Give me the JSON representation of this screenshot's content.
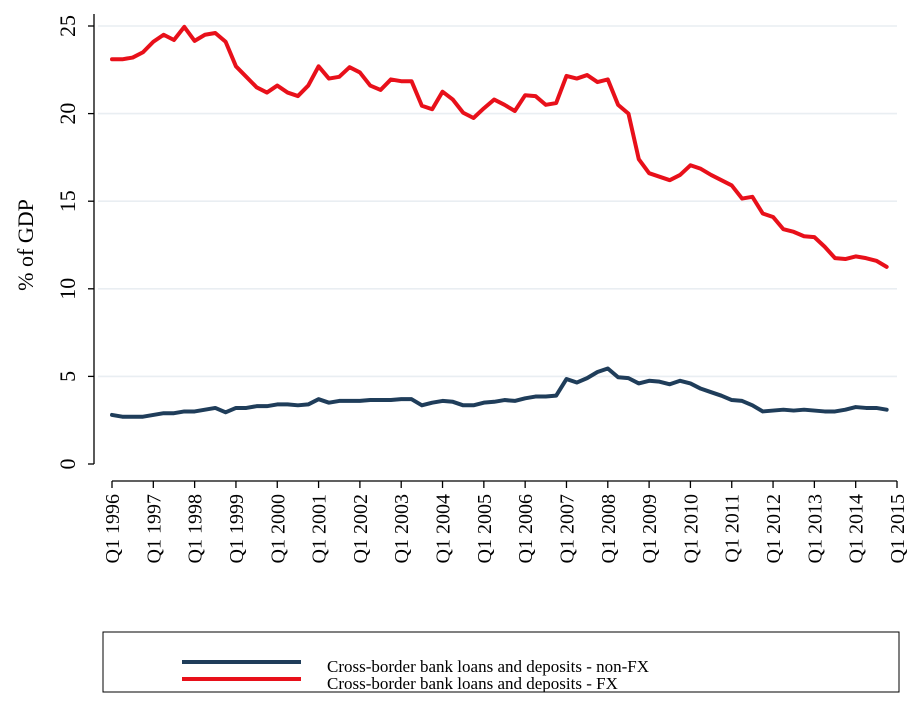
{
  "chart_data": {
    "type": "line",
    "title": "",
    "xlabel": "",
    "ylabel": "% of GDP",
    "ylim": [
      0,
      25
    ],
    "y_ticks": [
      0,
      5,
      10,
      15,
      20,
      25
    ],
    "grid": true,
    "legend_position": "bottom",
    "x_start": "1996-Q1",
    "x_end": "2014-Q4",
    "x_tick_labels": [
      "Q1 1996",
      "Q1 1997",
      "Q1 1998",
      "Q1 1999",
      "Q1 2000",
      "Q1 2001",
      "Q1 2002",
      "Q1 2003",
      "Q1 2004",
      "Q1 2005",
      "Q1 2006",
      "Q1 2007",
      "Q1 2008",
      "Q1 2009",
      "Q1 2010",
      "Q1 2011",
      "Q1 2012",
      "Q1 2013",
      "Q1 2014",
      "Q1 2015"
    ],
    "series": [
      {
        "name": "Cross-border bank loans and deposits - non-FX",
        "color": "#1f3d5a",
        "values": [
          2.8,
          2.7,
          2.7,
          2.7,
          2.8,
          2.9,
          2.9,
          3.0,
          3.0,
          3.1,
          3.2,
          2.95,
          3.2,
          3.2,
          3.3,
          3.3,
          3.4,
          3.4,
          3.35,
          3.4,
          3.7,
          3.5,
          3.6,
          3.6,
          3.6,
          3.65,
          3.65,
          3.65,
          3.7,
          3.7,
          3.35,
          3.5,
          3.6,
          3.55,
          3.35,
          3.35,
          3.5,
          3.55,
          3.65,
          3.6,
          3.75,
          3.85,
          3.85,
          3.9,
          4.85,
          4.65,
          4.9,
          5.25,
          5.45,
          4.95,
          4.9,
          4.6,
          4.75,
          4.7,
          4.55,
          4.75,
          4.6,
          4.3,
          4.1,
          3.9,
          3.65,
          3.6,
          3.35,
          3.0,
          3.05,
          3.1,
          3.05,
          3.1,
          3.05,
          3.0,
          3.0,
          3.1,
          3.25,
          3.2,
          3.2,
          3.1
        ]
      },
      {
        "name": "Cross-border bank loans and deposits - FX",
        "color": "#e8101a",
        "values": [
          23.1,
          23.1,
          23.2,
          23.5,
          24.1,
          24.5,
          24.2,
          24.95,
          24.15,
          24.5,
          24.6,
          24.1,
          22.7,
          22.1,
          21.5,
          21.2,
          21.6,
          21.2,
          21.0,
          21.6,
          22.7,
          22.0,
          22.1,
          22.65,
          22.35,
          21.6,
          21.35,
          21.95,
          21.85,
          21.85,
          20.45,
          20.25,
          21.25,
          20.8,
          20.05,
          19.75,
          20.3,
          20.8,
          20.5,
          20.15,
          21.05,
          21.0,
          20.5,
          20.6,
          22.15,
          22.0,
          22.2,
          21.8,
          21.95,
          20.5,
          20.0,
          17.4,
          16.6,
          16.4,
          16.2,
          16.5,
          17.05,
          16.85,
          16.5,
          16.2,
          15.9,
          15.15,
          15.25,
          14.3,
          14.1,
          13.4,
          13.25,
          13.0,
          12.95,
          12.4,
          11.75,
          11.7,
          11.85,
          11.75,
          11.6,
          11.25
        ]
      }
    ]
  }
}
